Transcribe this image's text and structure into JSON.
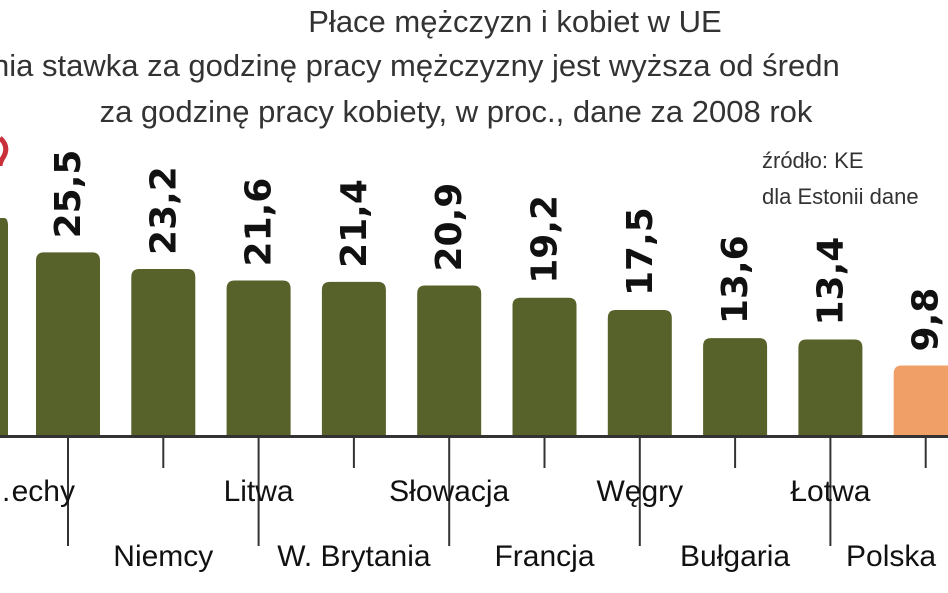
{
  "title": "Płace mężczyzn i kobiet w UE",
  "subtitle_line1": "nia stawka za godzinę pracy mężczyzny jest wyższa od średn",
  "subtitle_line2": "za godzinę pracy kobiety, w proc., dane za 2008 rok",
  "source_line1": "źródło: KE",
  "source_line2": "dla Estonii dane",
  "colors": {
    "bar": "#57622a",
    "bar_highlight": "#f0a066",
    "baseline": "#333333",
    "text": "#111111"
  },
  "chart_data": {
    "type": "bar",
    "orientation": "vertical",
    "categories": [
      "…echy",
      "Niemcy",
      "Litwa",
      "W. Brytania",
      "Słowacja",
      "Francja",
      "Węgry",
      "Bułgaria",
      "Łotwa",
      "Polska"
    ],
    "values": [
      25.5,
      23.2,
      21.6,
      21.4,
      20.9,
      19.2,
      17.5,
      13.6,
      13.4,
      9.8
    ],
    "value_labels": [
      "25,5",
      "23,2",
      "21,6",
      "21,4",
      "20,9",
      "19,2",
      "17,5",
      "13,6",
      "13,4",
      "9,8"
    ],
    "highlight_category": "Polska",
    "ylim": [
      0,
      30
    ],
    "grid": false,
    "legend": "none"
  }
}
